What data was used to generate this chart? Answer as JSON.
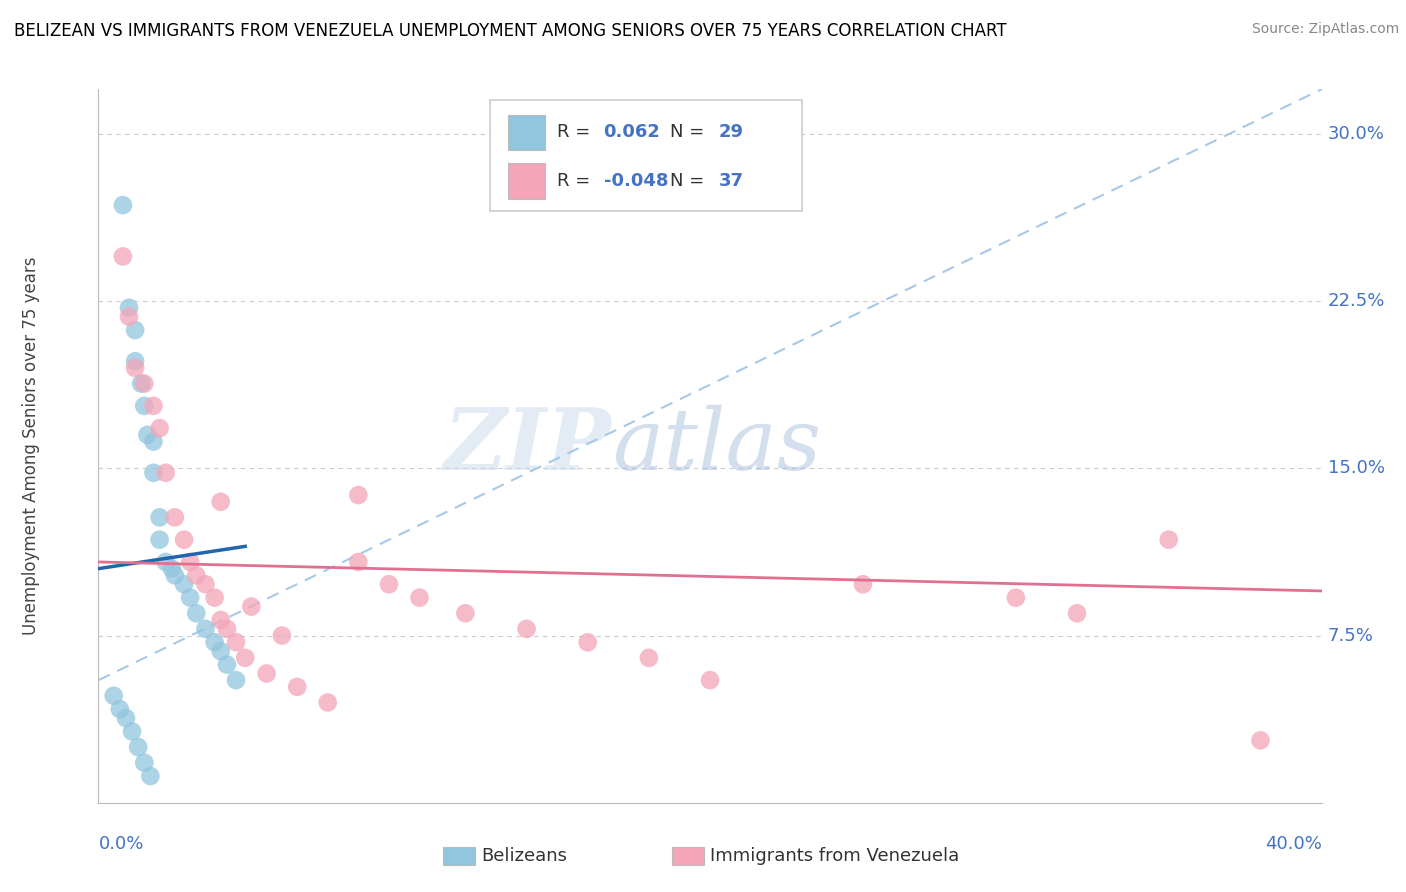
{
  "title": "BELIZEAN VS IMMIGRANTS FROM VENEZUELA UNEMPLOYMENT AMONG SENIORS OVER 75 YEARS CORRELATION CHART",
  "source": "Source: ZipAtlas.com",
  "ylabel": "Unemployment Among Seniors over 75 years",
  "ytick_labels": [
    "7.5%",
    "15.0%",
    "22.5%",
    "30.0%"
  ],
  "ytick_values": [
    0.075,
    0.15,
    0.225,
    0.3
  ],
  "xlim": [
    0.0,
    0.4
  ],
  "ylim": [
    0.0,
    0.32
  ],
  "blue_r": "0.062",
  "blue_n": "29",
  "pink_r": "-0.048",
  "pink_n": "37",
  "blue_color": "#92c5de",
  "pink_color": "#f4a5b8",
  "blue_line_color": "#2166ac",
  "pink_line_color": "#e07090",
  "dash_color": "#a8c8e8",
  "label_color": "#4472C4",
  "watermark_zip": "ZIP",
  "watermark_atlas": "atlas",
  "blue_x": [
    0.008,
    0.01,
    0.012,
    0.012,
    0.014,
    0.015,
    0.016,
    0.018,
    0.018,
    0.02,
    0.02,
    0.022,
    0.024,
    0.025,
    0.028,
    0.03,
    0.032,
    0.035,
    0.038,
    0.04,
    0.042,
    0.045,
    0.005,
    0.007,
    0.009,
    0.011,
    0.013,
    0.015,
    0.017
  ],
  "blue_y": [
    0.268,
    0.222,
    0.212,
    0.198,
    0.188,
    0.178,
    0.165,
    0.162,
    0.148,
    0.128,
    0.118,
    0.108,
    0.105,
    0.102,
    0.098,
    0.092,
    0.085,
    0.078,
    0.072,
    0.068,
    0.062,
    0.055,
    0.048,
    0.042,
    0.038,
    0.032,
    0.025,
    0.018,
    0.012
  ],
  "pink_x": [
    0.008,
    0.01,
    0.012,
    0.015,
    0.018,
    0.02,
    0.022,
    0.025,
    0.028,
    0.03,
    0.032,
    0.035,
    0.038,
    0.04,
    0.042,
    0.045,
    0.048,
    0.055,
    0.065,
    0.075,
    0.085,
    0.085,
    0.095,
    0.105,
    0.12,
    0.14,
    0.16,
    0.18,
    0.2,
    0.25,
    0.3,
    0.32,
    0.35,
    0.38,
    0.04,
    0.05,
    0.06
  ],
  "pink_y": [
    0.245,
    0.218,
    0.195,
    0.188,
    0.178,
    0.168,
    0.148,
    0.128,
    0.118,
    0.108,
    0.102,
    0.098,
    0.092,
    0.082,
    0.078,
    0.072,
    0.065,
    0.058,
    0.052,
    0.045,
    0.138,
    0.108,
    0.098,
    0.092,
    0.085,
    0.078,
    0.072,
    0.065,
    0.055,
    0.098,
    0.092,
    0.085,
    0.118,
    0.028,
    0.135,
    0.088,
    0.075
  ]
}
